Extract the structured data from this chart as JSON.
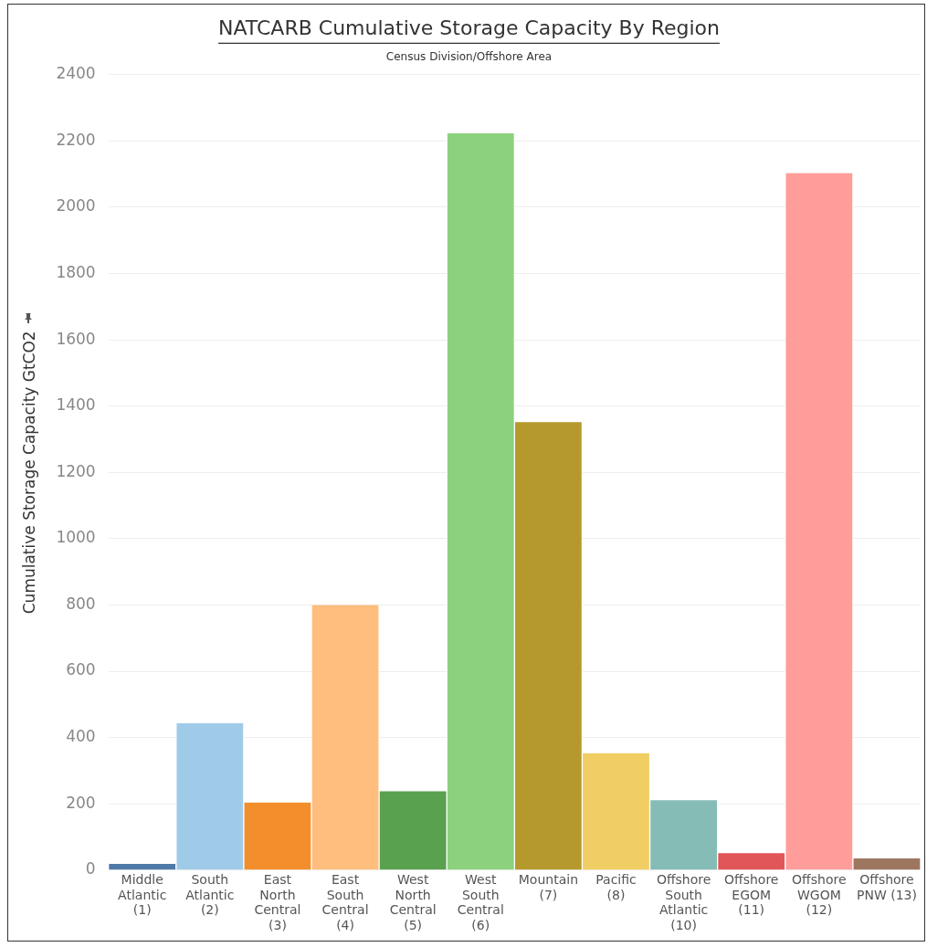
{
  "chart_data": {
    "type": "bar",
    "title": "NATCARB Cumulative Storage Capacity By Region",
    "xlabel": "Census Division/Offshore Area",
    "ylabel": "Cumulative Storage Capacity GtCO2",
    "categories": [
      "Middle Atlantic (1)",
      "South Atlantic (2)",
      "East North Central (3)",
      "East South Central (4)",
      "West North Central (5)",
      "West South Central (6)",
      "Mountain (7)",
      "Pacific (8)",
      "Offshore South Atlantic (10)",
      "Offshore EGOM (11)",
      "Offshore WGOM (12)",
      "Offshore PNW (13)"
    ],
    "values": [
      19,
      443,
      204,
      800,
      238,
      2223,
      1352,
      353,
      211,
      51,
      2103,
      35
    ],
    "colors": [
      "#4e79a7",
      "#a0cbe8",
      "#f28e2b",
      "#ffbe7d",
      "#59a14f",
      "#8cd17d",
      "#b6992d",
      "#f1ce63",
      "#86bcb6",
      "#e15759",
      "#ff9d9a",
      "#9d7660"
    ],
    "ylim": [
      0,
      2400
    ],
    "yticks": [
      0,
      200,
      400,
      600,
      800,
      1000,
      1200,
      1400,
      1600,
      1800,
      2000,
      2200,
      2400
    ],
    "grid": "y",
    "legend": false
  }
}
